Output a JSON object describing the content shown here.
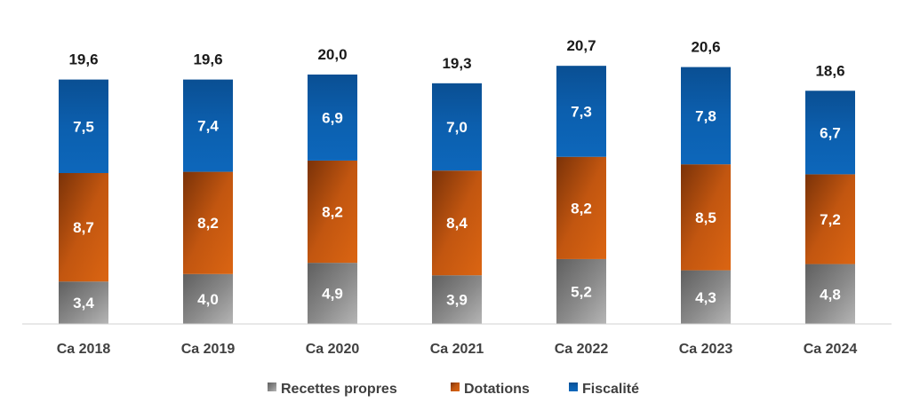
{
  "chart_data": {
    "type": "bar",
    "stacked": true,
    "title": "",
    "xlabel": "",
    "ylabel": "",
    "ylim": [
      0,
      22
    ],
    "grid": false,
    "legend_position": "bottom",
    "categories": [
      "Ca 2018",
      "Ca 2019",
      "Ca 2020",
      "Ca 2021",
      "Ca 2022",
      "Ca 2023",
      "Ca 2024"
    ],
    "series": [
      {
        "name": "Recettes propres",
        "values": [
          3.4,
          4.0,
          4.9,
          3.9,
          5.2,
          4.3,
          4.8
        ],
        "labels": [
          "3,4",
          "4,0",
          "4,9",
          "3,9",
          "5,2",
          "4,3",
          "4,8"
        ],
        "color": "#808080"
      },
      {
        "name": "Dotations",
        "values": [
          8.7,
          8.2,
          8.2,
          8.4,
          8.2,
          8.5,
          7.2
        ],
        "labels": [
          "8,7",
          "8,2",
          "8,2",
          "8,4",
          "8,2",
          "8,5",
          "7,2"
        ],
        "color": "#C55A11"
      },
      {
        "name": "Fiscalité",
        "values": [
          7.5,
          7.4,
          6.9,
          7.0,
          7.3,
          7.8,
          6.7
        ],
        "labels": [
          "7,5",
          "7,4",
          "6,9",
          "7,0",
          "7,3",
          "7,8",
          "6,7"
        ],
        "color": "#0B5DAA"
      }
    ],
    "totals": [
      19.6,
      19.6,
      20.0,
      19.3,
      20.7,
      20.6,
      18.6
    ],
    "total_labels": [
      "19,6",
      "19,6",
      "20,0",
      "19,3",
      "20,7",
      "20,6",
      "18,6"
    ]
  }
}
